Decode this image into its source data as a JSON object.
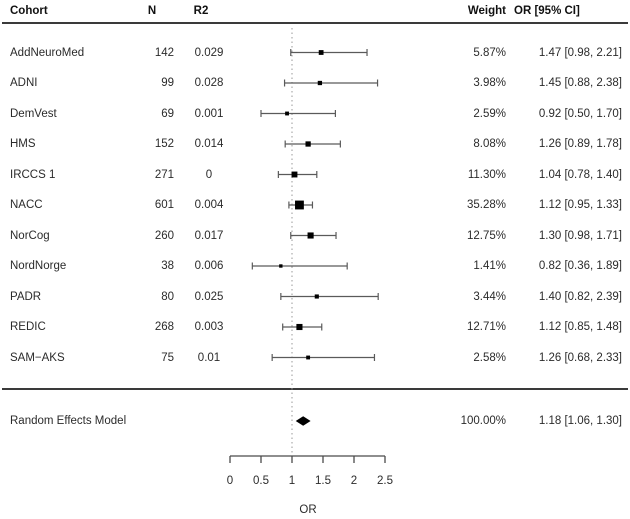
{
  "header": {
    "cohort": "Cohort",
    "n": "N",
    "r2": "R2",
    "weight": "Weight",
    "or_ci": "OR [95% CI]"
  },
  "summary": {
    "label": "Random Effects Model",
    "weight": "100.00%",
    "or_ci": "1.18 [1.06, 1.30]"
  },
  "axis": {
    "label": "OR",
    "tick_labels": [
      "0",
      "0.5",
      "1",
      "1.5",
      "2",
      "2.5"
    ]
  },
  "chart_data": {
    "type": "forest",
    "xlabel": "OR",
    "xlim": [
      0,
      2.5
    ],
    "x_ticks": [
      0,
      0.5,
      1,
      1.5,
      2,
      2.5
    ],
    "reference_line": 1,
    "columns": [
      "Cohort",
      "N",
      "R2",
      "Weight",
      "OR [95% CI]"
    ],
    "rows": [
      {
        "cohort": "AddNeuroMed",
        "n": "142",
        "r2": "0.029",
        "weight": "5.87%",
        "weight_pct": 5.87,
        "or": 1.47,
        "ci_low": 0.98,
        "ci_high": 2.21,
        "or_ci": "1.47 [0.98, 2.21]"
      },
      {
        "cohort": "ADNI",
        "n": "99",
        "r2": "0.028",
        "weight": "3.98%",
        "weight_pct": 3.98,
        "or": 1.45,
        "ci_low": 0.88,
        "ci_high": 2.38,
        "or_ci": "1.45 [0.88, 2.38]"
      },
      {
        "cohort": "DemVest",
        "n": "69",
        "r2": "0.001",
        "weight": "2.59%",
        "weight_pct": 2.59,
        "or": 0.92,
        "ci_low": 0.5,
        "ci_high": 1.7,
        "or_ci": "0.92 [0.50, 1.70]"
      },
      {
        "cohort": "HMS",
        "n": "152",
        "r2": "0.014",
        "weight": "8.08%",
        "weight_pct": 8.08,
        "or": 1.26,
        "ci_low": 0.89,
        "ci_high": 1.78,
        "or_ci": "1.26 [0.89, 1.78]"
      },
      {
        "cohort": "IRCCS 1",
        "n": "271",
        "r2": "0",
        "weight": "11.30%",
        "weight_pct": 11.3,
        "or": 1.04,
        "ci_low": 0.78,
        "ci_high": 1.4,
        "or_ci": "1.04 [0.78, 1.40]"
      },
      {
        "cohort": "NACC",
        "n": "601",
        "r2": "0.004",
        "weight": "35.28%",
        "weight_pct": 35.28,
        "or": 1.12,
        "ci_low": 0.95,
        "ci_high": 1.33,
        "or_ci": "1.12 [0.95, 1.33]"
      },
      {
        "cohort": "NorCog",
        "n": "260",
        "r2": "0.017",
        "weight": "12.75%",
        "weight_pct": 12.75,
        "or": 1.3,
        "ci_low": 0.98,
        "ci_high": 1.71,
        "or_ci": "1.30 [0.98, 1.71]"
      },
      {
        "cohort": "NordNorge",
        "n": "38",
        "r2": "0.006",
        "weight": "1.41%",
        "weight_pct": 1.41,
        "or": 0.82,
        "ci_low": 0.36,
        "ci_high": 1.89,
        "or_ci": "0.82 [0.36, 1.89]"
      },
      {
        "cohort": "PADR",
        "n": "80",
        "r2": "0.025",
        "weight": "3.44%",
        "weight_pct": 3.44,
        "or": 1.4,
        "ci_low": 0.82,
        "ci_high": 2.39,
        "or_ci": "1.40 [0.82, 2.39]"
      },
      {
        "cohort": "REDIC",
        "n": "268",
        "r2": "0.003",
        "weight": "12.71%",
        "weight_pct": 12.71,
        "or": 1.12,
        "ci_low": 0.85,
        "ci_high": 1.48,
        "or_ci": "1.12 [0.85, 1.48]"
      },
      {
        "cohort": "SAM−AKS",
        "n": "75",
        "r2": "0.01",
        "weight": "2.58%",
        "weight_pct": 2.58,
        "or": 1.26,
        "ci_low": 0.68,
        "ci_high": 2.33,
        "or_ci": "1.26 [0.68, 2.33]"
      }
    ],
    "summary": {
      "label": "Random Effects Model",
      "weight": "100.00%",
      "weight_pct": 100.0,
      "or": 1.18,
      "ci_low": 1.06,
      "ci_high": 1.3,
      "or_ci": "1.18 [1.06, 1.30]"
    },
    "colors": {
      "marker": "#000000",
      "ci_line": "#5a5a5a",
      "reference_line": "#999999",
      "rule": "#3a3a3a",
      "axis": "#4a4a4a"
    }
  }
}
